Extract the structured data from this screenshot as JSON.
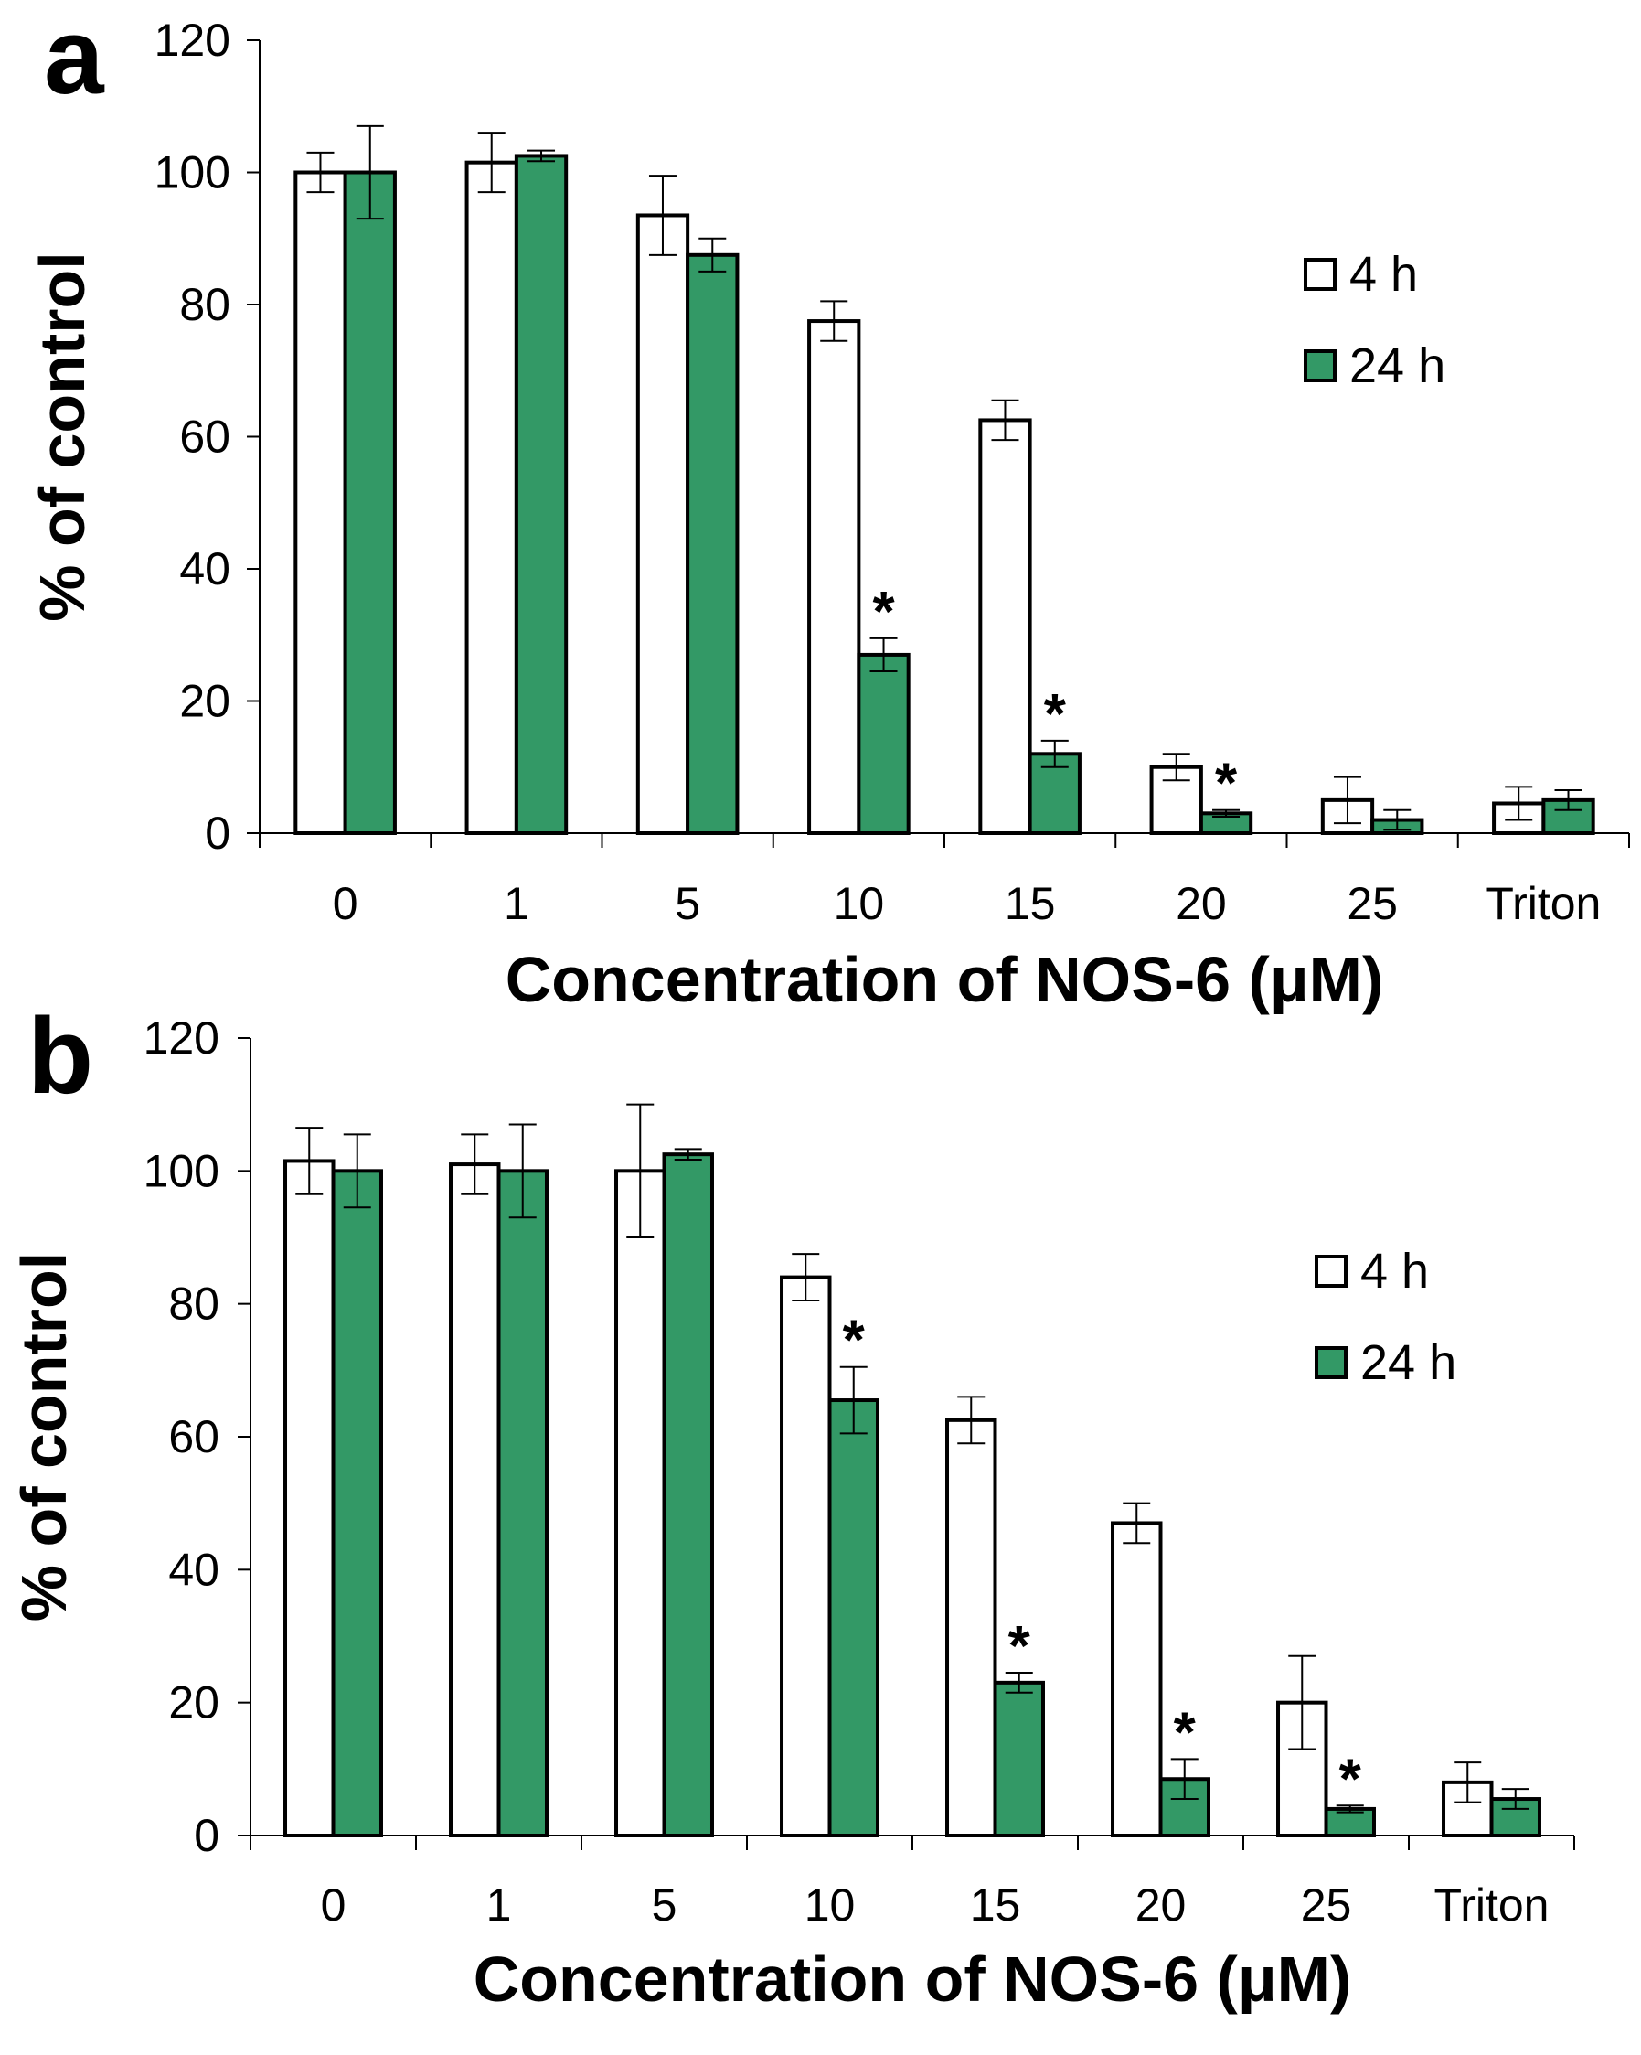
{
  "colors": {
    "series_4h_fill": "#ffffff",
    "series_24h_fill": "#339966",
    "stroke": "#000000"
  },
  "chart_data": [
    {
      "type": "bar",
      "panel_label": "a",
      "categories": [
        "0",
        "1",
        "5",
        "10",
        "15",
        "20",
        "25",
        "Triton"
      ],
      "xlabel": "Concentration of NOS-6 (μM)",
      "ylabel": "% of control",
      "ylim": [
        0,
        120
      ],
      "yticks": [
        "0",
        "20",
        "40",
        "60",
        "80",
        "100",
        "120"
      ],
      "legend_position": "right",
      "series": [
        {
          "name": "4 h",
          "values": [
            100,
            101.5,
            93.5,
            77.5,
            62.5,
            10,
            5,
            4.5
          ],
          "errors": [
            3,
            4.5,
            6,
            3,
            3,
            2,
            3.5,
            2.5
          ],
          "significant": [
            false,
            false,
            false,
            false,
            false,
            false,
            false,
            false
          ]
        },
        {
          "name": "24 h",
          "values": [
            100,
            102.5,
            87.5,
            27,
            12,
            3,
            2,
            5
          ],
          "errors": [
            7,
            0.8,
            2.5,
            2.5,
            2,
            0.5,
            1.5,
            1.5
          ],
          "significant": [
            false,
            false,
            false,
            true,
            true,
            true,
            false,
            false
          ]
        }
      ],
      "annotation": "*"
    },
    {
      "type": "bar",
      "panel_label": "b",
      "categories": [
        "0",
        "1",
        "5",
        "10",
        "15",
        "20",
        "25",
        "Triton"
      ],
      "xlabel": "Concentration of NOS-6 (μM)",
      "ylabel": "% of control",
      "ylim": [
        0,
        120
      ],
      "yticks": [
        "0",
        "20",
        "40",
        "60",
        "80",
        "100",
        "120"
      ],
      "legend_position": "right",
      "series": [
        {
          "name": "4 h",
          "values": [
            101.5,
            101,
            100,
            84,
            62.5,
            47,
            20,
            8
          ],
          "errors": [
            5,
            4.5,
            10,
            3.5,
            3.5,
            3,
            7,
            3
          ],
          "significant": [
            false,
            false,
            false,
            false,
            false,
            false,
            false,
            false
          ]
        },
        {
          "name": "24 h",
          "values": [
            100,
            100,
            102.5,
            65.5,
            23,
            8.5,
            4,
            5.5
          ],
          "errors": [
            5.5,
            7,
            0.8,
            5,
            1.5,
            3,
            0.5,
            1.5
          ],
          "significant": [
            false,
            false,
            false,
            true,
            true,
            true,
            true,
            false
          ]
        }
      ],
      "annotation": "*"
    }
  ]
}
